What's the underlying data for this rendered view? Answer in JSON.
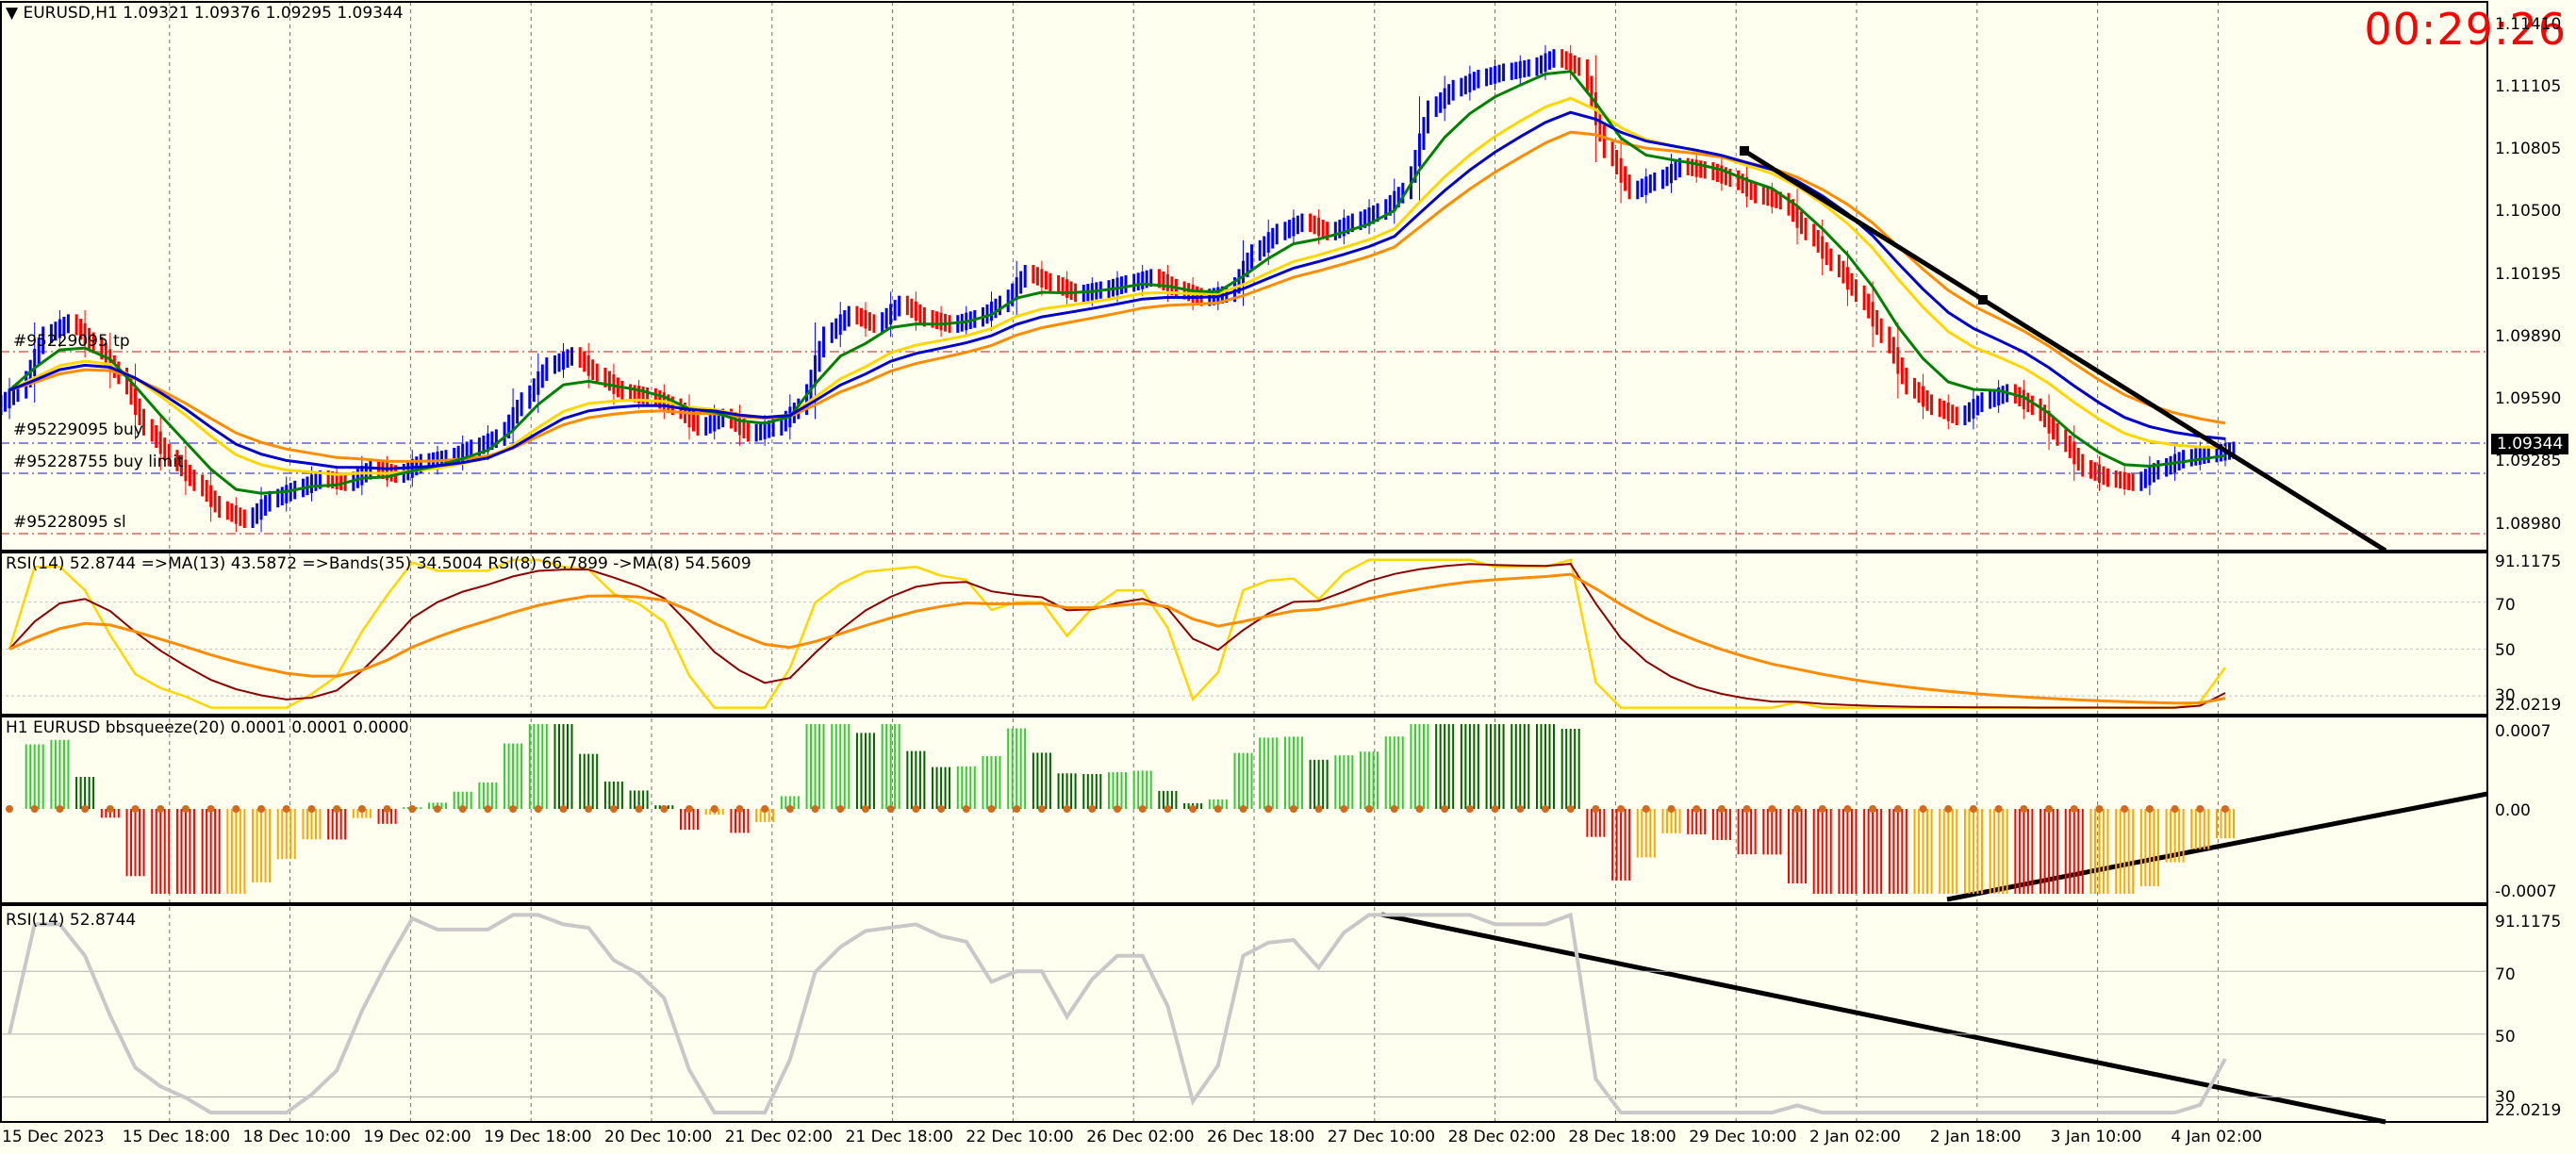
{
  "chart": {
    "header": "EURUSD,H1  1.09321 1.09376 1.09295 1.09344",
    "timer": "00:29:26",
    "price_axis": [
      "1.11410",
      "1.11105",
      "1.10805",
      "1.10500",
      "1.10195",
      "1.09890",
      "1.09590",
      "1.09285",
      "1.08980"
    ],
    "current_price": "1.09344",
    "orders": {
      "tp": "#95229095 tp",
      "buy": "#95229095 buy",
      "buy_limit": "#95228755 buy limit",
      "sl": "#95228095 sl"
    },
    "colors": {
      "bull": "#0000ff",
      "bear": "#ff0000",
      "ma_fast": "#008000",
      "ma_slow": "#0000cd",
      "ma_orange": "#ff8c00",
      "ma_yellow": "#ffd700",
      "background": "#fffff0"
    }
  },
  "rsi_panel": {
    "header": "RSI(14) 52.8744  =>MA(13) 43.5872  =>Bands(35) 34.5004  RSI(8) 66.7899  ->MA(8) 54.5609",
    "axis": [
      "91.1175",
      "70",
      "50",
      "30",
      "22.0219"
    ]
  },
  "bbsqueeze_panel": {
    "header": "H1 EURUSD bbsqueeze(20) 0.0001 0.0001 0.0000",
    "axis": [
      "0.0007",
      "0.00",
      "-0.0007"
    ]
  },
  "rsi2_panel": {
    "header": "RSI(14) 52.8744",
    "axis": [
      "91.1175",
      "70",
      "50",
      "30",
      "22.0219"
    ]
  },
  "time_axis": [
    "15 Dec 2023",
    "15 Dec 18:00",
    "18 Dec 10:00",
    "19 Dec 02:00",
    "19 Dec 18:00",
    "20 Dec 10:00",
    "21 Dec 02:00",
    "21 Dec 18:00",
    "22 Dec 10:00",
    "26 Dec 02:00",
    "26 Dec 18:00",
    "27 Dec 10:00",
    "28 Dec 02:00",
    "28 Dec 18:00",
    "29 Dec 10:00",
    "2 Jan 02:00",
    "2 Jan 18:00",
    "3 Jan 10:00",
    "4 Jan 02:00"
  ],
  "chart_data": {
    "type": "candlestick",
    "title": "EURUSD,H1",
    "ylim": [
      1.0885,
      1.1152
    ],
    "close": [
      1.0963,
      1.099,
      1.0996,
      1.0985,
      1.097,
      1.0945,
      1.093,
      1.0918,
      1.0905,
      1.09,
      1.091,
      1.0915,
      1.092,
      1.0918,
      1.0925,
      1.0922,
      1.0928,
      1.093,
      1.0935,
      1.094,
      1.0958,
      1.0975,
      1.098,
      1.097,
      1.0962,
      1.096,
      1.0955,
      1.0945,
      1.095,
      1.0942,
      1.0945,
      1.0955,
      1.099,
      1.1,
      1.0995,
      1.1005,
      1.0998,
      1.0995,
      1.0998,
      1.1005,
      1.102,
      1.1015,
      1.101,
      1.1012,
      1.1015,
      1.1018,
      1.1012,
      1.1008,
      1.101,
      1.103,
      1.104,
      1.1045,
      1.104,
      1.1045,
      1.105,
      1.106,
      1.11,
      1.111,
      1.1115,
      1.1118,
      1.112,
      1.1125,
      1.112,
      1.108,
      1.106,
      1.1065,
      1.1072,
      1.107,
      1.1066,
      1.1058,
      1.1055,
      1.104,
      1.1025,
      1.101,
      1.099,
      1.0965,
      1.0955,
      1.095,
      1.0958,
      1.0962,
      1.0955,
      1.094,
      1.0925,
      1.092,
      1.0918,
      1.0925,
      1.093,
      1.0932,
      1.0934
    ]
  }
}
